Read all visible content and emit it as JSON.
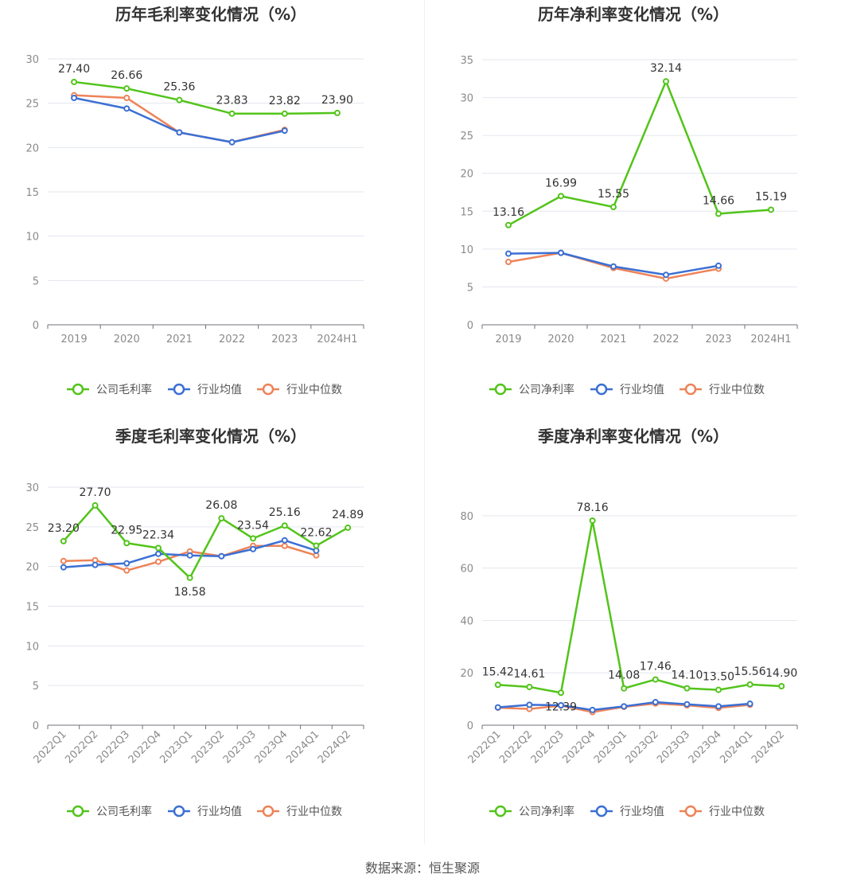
{
  "source": "数据来源：恒生聚源",
  "legend_labels": {
    "gross": "公司毛利率",
    "net": "公司净利率",
    "avg": "行业均值",
    "median": "行业中位数"
  },
  "colors": {
    "company": "#52c41a",
    "avg": "#3b6fd4",
    "median": "#ee8358"
  },
  "chart_data": [
    {
      "type": "line",
      "title": "历年毛利率变化情况（%）",
      "categories": [
        "2019",
        "2020",
        "2021",
        "2022",
        "2023",
        "2024H1"
      ],
      "ylim": [
        0,
        30
      ],
      "yticks": [
        0,
        5,
        10,
        15,
        20,
        25,
        30
      ],
      "grid": true,
      "legend_position": "bottom",
      "legend_key": "gross",
      "series": [
        {
          "name": "公司毛利率",
          "values": [
            27.4,
            26.66,
            25.36,
            23.83,
            23.82,
            23.9
          ],
          "labels": [
            "27.40",
            "26.66",
            "25.36",
            "23.83",
            "23.82",
            "23.90"
          ]
        },
        {
          "name": "行业均值",
          "values": [
            25.6,
            24.4,
            21.7,
            20.6,
            21.9,
            null
          ]
        },
        {
          "name": "行业中位数",
          "values": [
            25.9,
            25.6,
            21.7,
            20.6,
            22.0,
            null
          ]
        }
      ]
    },
    {
      "type": "line",
      "title": "历年净利率变化情况（%）",
      "categories": [
        "2019",
        "2020",
        "2021",
        "2022",
        "2023",
        "2024H1"
      ],
      "ylim": [
        0,
        35
      ],
      "yticks": [
        0,
        5,
        10,
        15,
        20,
        25,
        30,
        35
      ],
      "grid": true,
      "legend_position": "bottom",
      "legend_key": "net",
      "series": [
        {
          "name": "公司净利率",
          "values": [
            13.16,
            16.99,
            15.55,
            32.14,
            14.66,
            15.19
          ],
          "labels": [
            "13.16",
            "16.99",
            "15.55",
            "32.14",
            "14.66",
            "15.19"
          ]
        },
        {
          "name": "行业均值",
          "values": [
            9.4,
            9.5,
            7.7,
            6.6,
            7.8,
            null
          ]
        },
        {
          "name": "行业中位数",
          "values": [
            8.3,
            9.5,
            7.5,
            6.1,
            7.4,
            null
          ]
        }
      ]
    },
    {
      "type": "line",
      "title": "季度毛利率变化情况（%）",
      "categories": [
        "2022Q1",
        "2022Q2",
        "2022Q3",
        "2022Q4",
        "2023Q1",
        "2023Q2",
        "2023Q3",
        "2023Q4",
        "2024Q1",
        "2024Q2"
      ],
      "ylim": [
        0,
        30
      ],
      "yticks": [
        0,
        5,
        10,
        15,
        20,
        25,
        30
      ],
      "grid": true,
      "legend_position": "bottom",
      "legend_key": "gross",
      "series": [
        {
          "name": "公司毛利率",
          "values": [
            23.2,
            27.7,
            22.95,
            22.34,
            18.58,
            26.08,
            23.54,
            25.16,
            22.62,
            24.89
          ],
          "labels": [
            "23.20",
            "27.70",
            "22.95",
            "22.34",
            "18.58",
            "26.08",
            "23.54",
            "25.16",
            "22.62",
            "24.89"
          ]
        },
        {
          "name": "行业均值",
          "values": [
            19.9,
            20.2,
            20.4,
            21.6,
            21.4,
            21.3,
            22.2,
            23.3,
            22.0,
            null
          ]
        },
        {
          "name": "行业中位数",
          "values": [
            20.7,
            20.8,
            19.5,
            20.6,
            21.9,
            21.3,
            22.6,
            22.6,
            21.4,
            null
          ]
        }
      ]
    },
    {
      "type": "line",
      "title": "季度净利率变化情况（%）",
      "categories": [
        "2022Q1",
        "2022Q2",
        "2022Q3",
        "2022Q4",
        "2023Q1",
        "2023Q2",
        "2023Q3",
        "2023Q4",
        "2024Q1",
        "2024Q2"
      ],
      "ylim": [
        0,
        90
      ],
      "yticks": [
        0,
        20,
        40,
        60,
        80
      ],
      "grid": true,
      "legend_position": "bottom",
      "legend_key": "net",
      "series": [
        {
          "name": "公司净利率",
          "values": [
            15.42,
            14.61,
            12.39,
            78.16,
            14.08,
            17.46,
            14.1,
            13.5,
            15.56,
            14.9
          ],
          "labels": [
            "15.42",
            "14.61",
            "12.39",
            "78.16",
            "14.08",
            "17.46",
            "14.10",
            "13.50",
            "15.56",
            "14.90"
          ]
        },
        {
          "name": "行业均值",
          "values": [
            6.8,
            7.8,
            7.6,
            5.8,
            7.2,
            8.8,
            8.0,
            7.2,
            8.2,
            null
          ]
        },
        {
          "name": "行业中位数",
          "values": [
            6.7,
            6.2,
            7.5,
            5.0,
            7.0,
            8.3,
            7.6,
            6.6,
            7.8,
            null
          ]
        }
      ]
    }
  ]
}
